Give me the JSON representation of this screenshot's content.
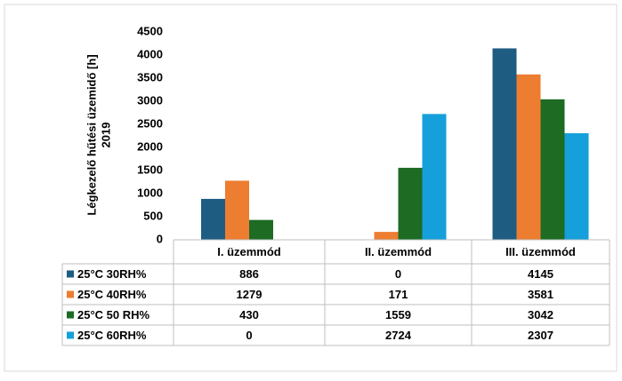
{
  "chart_data": {
    "type": "bar",
    "ylabel": [
      "Légkezelő hűtési üzemidő [h]",
      "2019"
    ],
    "categories": [
      "I. üzemmód",
      "II. üzemmód",
      "III. üzemmód"
    ],
    "series": [
      {
        "name": "25°C 30RH%",
        "color": "#1f5c82",
        "values": [
          886,
          0,
          4145
        ]
      },
      {
        "name": "25°C 40RH%",
        "color": "#ed7d31",
        "values": [
          1279,
          171,
          3581
        ]
      },
      {
        "name": "25°C 50 RH%",
        "color": "#1e6b24",
        "values": [
          430,
          1559,
          3042
        ]
      },
      {
        "name": "25°C 60RH%",
        "color": "#15a0db",
        "values": [
          0,
          2724,
          2307
        ]
      }
    ],
    "ylim": [
      0,
      4500
    ],
    "yticks": [
      0,
      500,
      1000,
      1500,
      2000,
      2500,
      3000,
      3500,
      4000,
      4500
    ],
    "grid": false,
    "data_table": true
  }
}
